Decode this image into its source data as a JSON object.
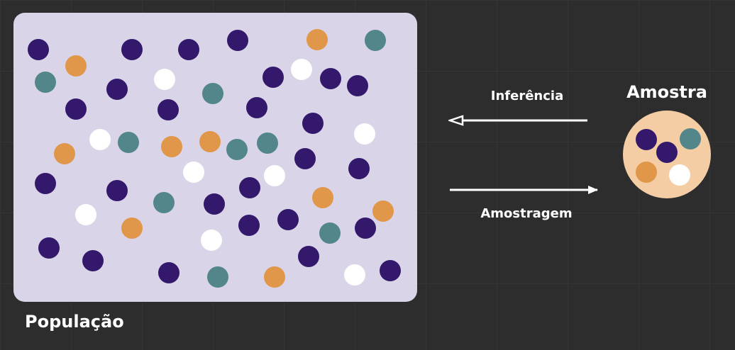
{
  "labels": {
    "population": "População",
    "sample": "Amostra",
    "inference": "Inferência",
    "sampling": "Amostragem"
  },
  "colors": {
    "background": "#2d2d2d",
    "population_box": "#d9d4e8",
    "sample_circle": "#f4cda5",
    "arrow": "#ffffff",
    "dot_purple": "#33186b",
    "dot_orange": "#e0974a",
    "dot_teal": "#52868b",
    "dot_white": "#ffffff"
  },
  "population_dots": {
    "purple": 30,
    "orange": 10,
    "teal": 11,
    "white": 10
  },
  "sample_dots": {
    "purple": 2,
    "orange": 1,
    "teal": 1,
    "white": 1
  }
}
